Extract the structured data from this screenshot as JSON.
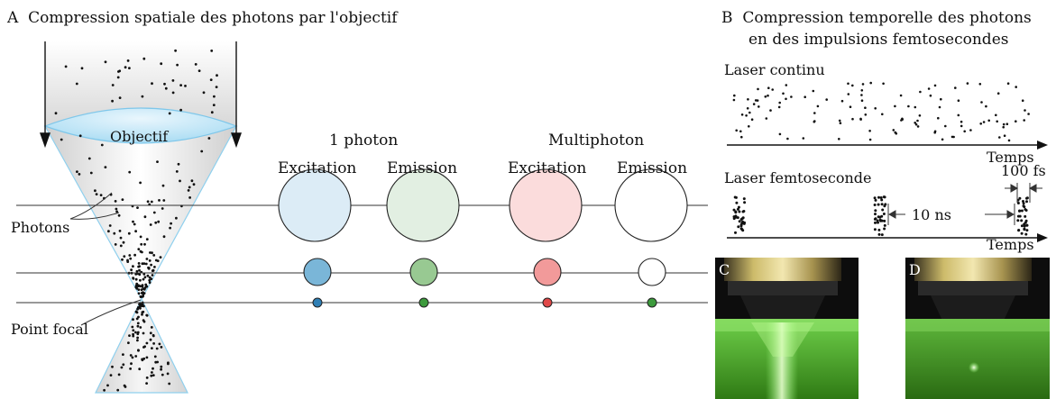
{
  "panel_a": {
    "letter": "A",
    "title": "Compression spatiale des photons par l'objectif",
    "lens_label": "Objectif",
    "photons_label": "Photons",
    "focal_label": "Point focal",
    "one_photon": "1 photon",
    "multiphoton": "Multiphoton",
    "excitation_1": "Excitation",
    "emission_1": "Emission",
    "excitation_2": "Excitation",
    "emission_2": "Emission"
  },
  "panel_b": {
    "letter": "B",
    "title_line1": "Compression temporelle des photons",
    "title_line2": "en des impulsions femtosecondes",
    "cw_label": "Laser continu",
    "fs_label": "Laser femtoseconde",
    "time_axis_1": "Temps",
    "time_axis_2": "Temps",
    "pulse_width": "100 fs",
    "pulse_period": "10 ns"
  },
  "panel_c": {
    "letter": "C"
  },
  "panel_d": {
    "letter": "D"
  },
  "colors": {
    "excitation_1p": "#dcecf6",
    "emission_1p": "#e2efe2",
    "excitation_mp": "#fbdcdc",
    "emission_mp": "#ffffff",
    "blue_dot": "#3a8fc0",
    "green_dot": "#3c9a3c",
    "red_dot": "#e04848",
    "lens": "#cde8f6",
    "beam_edge": "#8fd0ee"
  }
}
